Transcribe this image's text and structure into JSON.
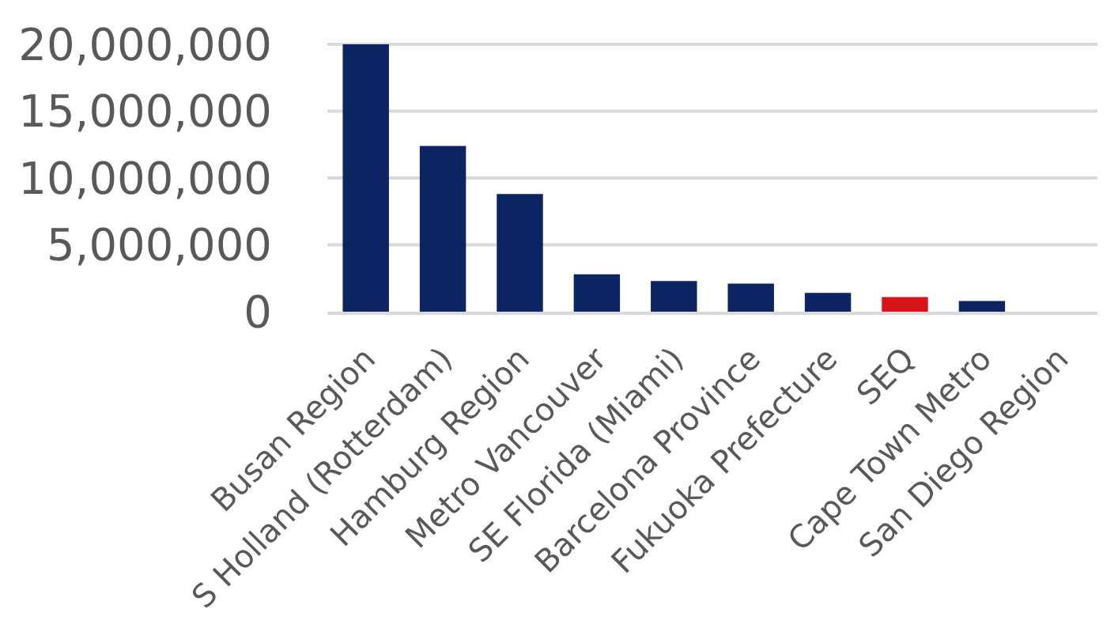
{
  "chart_data": {
    "type": "bar",
    "categories": [
      "Busan Region",
      "S Holland (Rotterdam)",
      "Hamburg Region",
      "Metro Vancouver",
      "SE Florida (Miami)",
      "Barcelona Province",
      "Fukuoka Prefecture",
      "SEQ",
      "Cape Town Metro",
      "San Diego Region"
    ],
    "values": [
      20000000,
      12400000,
      8800000,
      2800000,
      2300000,
      2100000,
      1400000,
      1100000,
      800000,
      0
    ],
    "colors": [
      "#0c2461",
      "#0c2461",
      "#0c2461",
      "#0c2461",
      "#0c2461",
      "#0c2461",
      "#0c2461",
      "#d7141a",
      "#0c2461",
      "#0c2461"
    ],
    "ylim": [
      0,
      20000000
    ],
    "yticks": [
      {
        "value": 0,
        "label": "0"
      },
      {
        "value": 5000000,
        "label": "5,000,000"
      },
      {
        "value": 10000000,
        "label": "10,000,000"
      },
      {
        "value": 15000000,
        "label": "15,000,000"
      },
      {
        "value": 20000000,
        "label": "20,000,000"
      }
    ],
    "grid": "y"
  }
}
